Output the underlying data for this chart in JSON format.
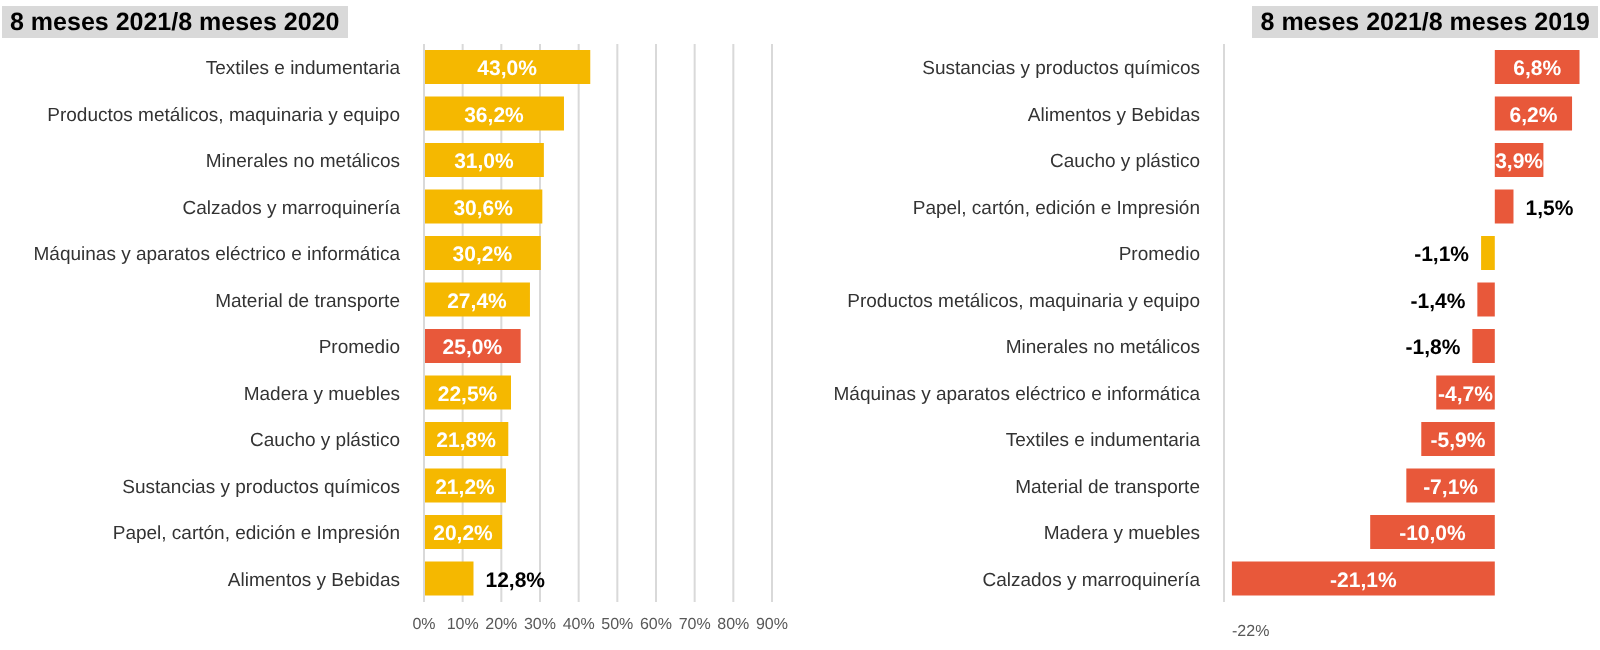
{
  "chart_data": [
    {
      "type": "bar",
      "orientation": "horizontal",
      "title": "8 meses 2021/8 meses 2020",
      "categories": [
        "Textiles e indumentaria",
        "Productos metálicos, maquinaria y equipo",
        "Minerales no metálicos",
        "Calzados y marroquinería",
        "Máquinas y aparatos eléctrico e informática",
        "Material de transporte",
        "Promedio",
        "Madera y muebles",
        "Caucho y plástico",
        "Sustancias y productos químicos",
        "Papel, cartón, edición e Impresión",
        "Alimentos y Bebidas"
      ],
      "values": [
        43.0,
        36.2,
        31.0,
        30.6,
        30.2,
        27.4,
        25.0,
        22.5,
        21.8,
        21.2,
        20.2,
        12.8
      ],
      "value_labels": [
        "43,0%",
        "36,2%",
        "31,0%",
        "30,6%",
        "30,2%",
        "27,4%",
        "25,0%",
        "22,5%",
        "21,8%",
        "21,2%",
        "20,2%",
        "12,8%"
      ],
      "colors": [
        "#f5b800",
        "#f5b800",
        "#f5b800",
        "#f5b800",
        "#f5b800",
        "#f5b800",
        "#e8583a",
        "#f5b800",
        "#f5b800",
        "#f5b800",
        "#f5b800",
        "#f5b800"
      ],
      "xlim": [
        0,
        90
      ],
      "xticks": [
        {
          "value": 0,
          "label": "0%"
        },
        {
          "value": 10,
          "label": "10%"
        },
        {
          "value": 20,
          "label": "20%"
        },
        {
          "value": 30,
          "label": "30%"
        },
        {
          "value": 40,
          "label": "40%"
        },
        {
          "value": 50,
          "label": "50%"
        },
        {
          "value": 60,
          "label": "60%"
        },
        {
          "value": 70,
          "label": "70%"
        },
        {
          "value": 80,
          "label": "80%"
        },
        {
          "value": 90,
          "label": "90%"
        }
      ],
      "grid": "x"
    },
    {
      "type": "bar",
      "orientation": "horizontal",
      "title": "8 meses 2021/8 meses 2019",
      "categories": [
        "Sustancias y productos químicos",
        "Alimentos y Bebidas",
        "Caucho y plástico",
        "Papel, cartón, edición e Impresión",
        "Promedio",
        "Productos metálicos, maquinaria y equipo",
        "Minerales no metálicos",
        "Máquinas y aparatos eléctrico e informática",
        "Textiles e indumentaria",
        "Material de transporte",
        "Madera y muebles",
        "Calzados y marroquinería"
      ],
      "values": [
        6.8,
        6.2,
        3.9,
        1.5,
        -1.1,
        -1.4,
        -1.8,
        -4.7,
        -5.9,
        -7.1,
        -10.0,
        -21.1
      ],
      "value_labels": [
        "6,8%",
        "6,2%",
        "3,9%",
        "1,5%",
        "-1,1%",
        "-1,4%",
        "-1,8%",
        "-4,7%",
        "-5,9%",
        "-7,1%",
        "-10,0%",
        "-21,1%"
      ],
      "colors": [
        "#e8583a",
        "#e8583a",
        "#e8583a",
        "#e8583a",
        "#f5b800",
        "#e8583a",
        "#e8583a",
        "#e8583a",
        "#e8583a",
        "#e8583a",
        "#e8583a",
        "#e8583a"
      ],
      "annotations": [
        "-22%"
      ]
    }
  ]
}
